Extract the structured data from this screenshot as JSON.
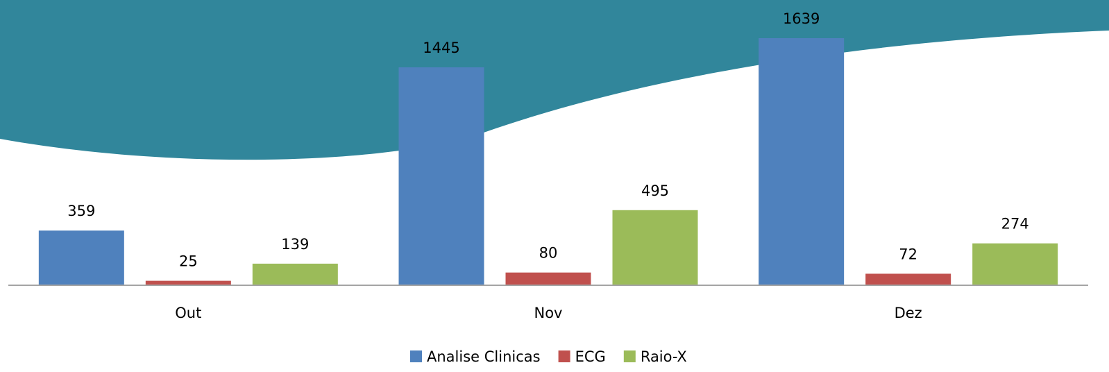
{
  "chart_data": {
    "type": "bar",
    "categories": [
      "Out",
      "Nov",
      "Dez"
    ],
    "series": [
      {
        "name": "Analise Clinicas",
        "color": "#4f81bd",
        "values": [
          359,
          1445,
          1639
        ]
      },
      {
        "name": "ECG",
        "color": "#c0504d",
        "values": [
          25,
          80,
          72
        ]
      },
      {
        "name": "Raio-X",
        "color": "#9bbb59",
        "values": [
          139,
          495,
          274
        ]
      }
    ],
    "legend": "bottom"
  }
}
